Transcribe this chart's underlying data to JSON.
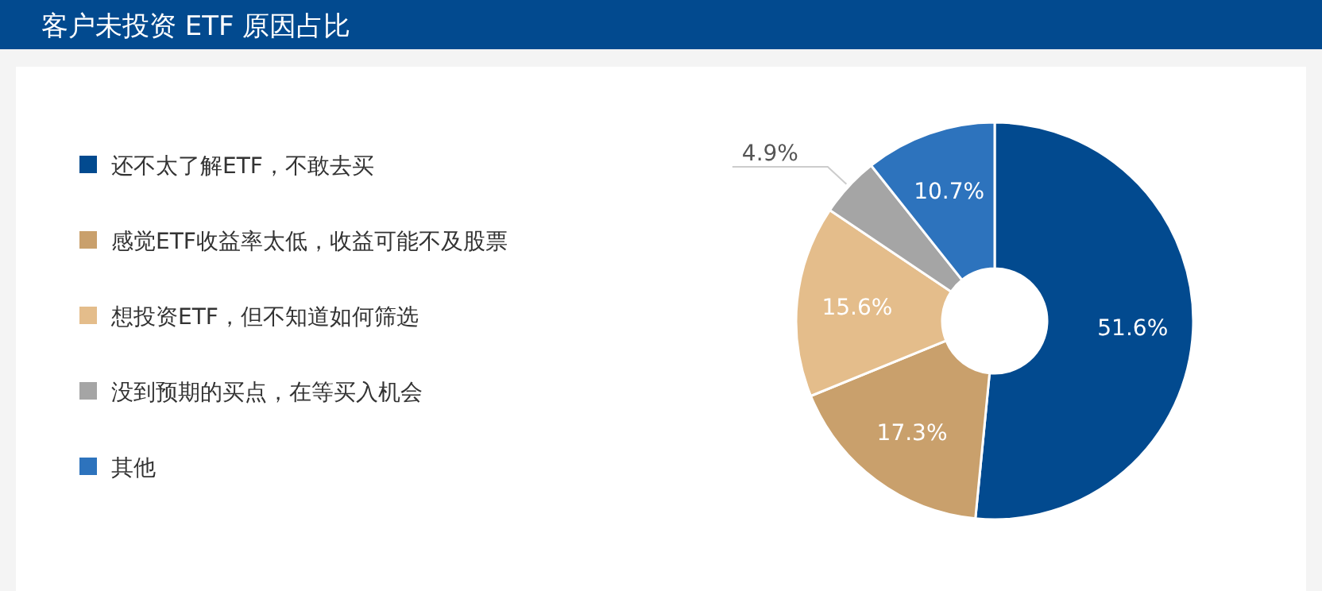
{
  "chart_data": {
    "type": "donut",
    "title": "客户未投资 ETF 原因占比",
    "categories": [
      "还不太了解ETF，不敢去买",
      "感觉ETF收益率太低，收益可能不及股票",
      "想投资ETF，但不知道如何筛选",
      "没到预期的买点，在等买入机会",
      "其他"
    ],
    "values": [
      51.6,
      17.3,
      15.6,
      4.9,
      10.7
    ],
    "colors": [
      "#024a8f",
      "#c9a06c",
      "#e4bd8b",
      "#a5a5a5",
      "#2d73bd"
    ],
    "value_labels": [
      "51.6%",
      "17.3%",
      "15.6%",
      "4.9%",
      "10.7%"
    ],
    "legend": "left"
  }
}
